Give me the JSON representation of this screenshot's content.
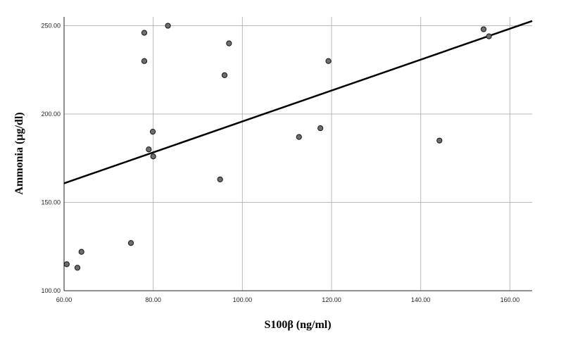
{
  "chart_data": {
    "type": "scatter",
    "title": "",
    "xlabel": "S100β (ng/ml)",
    "ylabel": "Ammonia (µg/dl)",
    "xlim": [
      60,
      165
    ],
    "ylim": [
      100,
      255
    ],
    "x_ticks": [
      60,
      80,
      100,
      120,
      140,
      160
    ],
    "y_ticks": [
      100,
      150,
      200,
      250
    ],
    "x_tick_labels": [
      "60.00",
      "80.00",
      "100.00",
      "120.00",
      "140.00",
      "160.00"
    ],
    "y_tick_labels": [
      "100.00",
      "150.00",
      "200.00",
      "250.00"
    ],
    "grid": true,
    "legend": "none",
    "series": [
      {
        "points": [
          {
            "x": 60.6,
            "y": 115
          },
          {
            "x": 63.0,
            "y": 113
          },
          {
            "x": 63.9,
            "y": 122
          },
          {
            "x": 75.0,
            "y": 127
          },
          {
            "x": 78.0,
            "y": 246
          },
          {
            "x": 78.0,
            "y": 230
          },
          {
            "x": 79.0,
            "y": 180
          },
          {
            "x": 79.9,
            "y": 190
          },
          {
            "x": 80.0,
            "y": 176
          },
          {
            "x": 83.3,
            "y": 250
          },
          {
            "x": 95.0,
            "y": 163
          },
          {
            "x": 96.0,
            "y": 222
          },
          {
            "x": 97.0,
            "y": 240
          },
          {
            "x": 112.7,
            "y": 187
          },
          {
            "x": 117.5,
            "y": 192
          },
          {
            "x": 119.3,
            "y": 230
          },
          {
            "x": 144.2,
            "y": 185
          },
          {
            "x": 154.1,
            "y": 248
          },
          {
            "x": 155.3,
            "y": 244
          }
        ]
      }
    ],
    "fit_line": {
      "x": [
        60,
        165
      ],
      "y": [
        160.8,
        252.7
      ]
    },
    "colors": {
      "point_fill": "#6e6e6e",
      "point_edge": "#111111",
      "line": "#000000",
      "grid": "#b8b8b8"
    }
  }
}
